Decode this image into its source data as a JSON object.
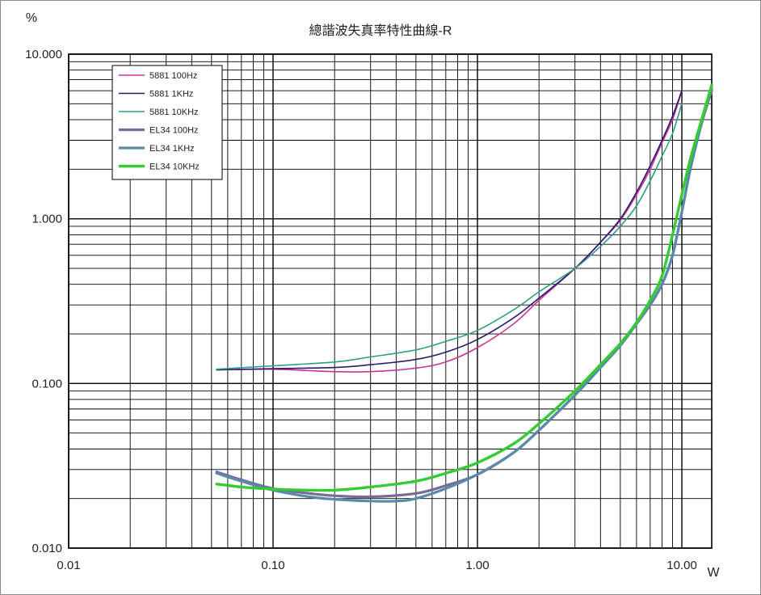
{
  "chart_data": {
    "type": "line",
    "title": "總諧波失真率特性曲線-R",
    "ylabel": "%",
    "xlabel": "W",
    "x_scale": "log",
    "y_scale": "log",
    "xlim": [
      0.01,
      14.0
    ],
    "ylim": [
      0.01,
      10.0
    ],
    "x_ticks": [
      {
        "value": 0.01,
        "label": "0.01"
      },
      {
        "value": 0.1,
        "label": "0.10"
      },
      {
        "value": 1,
        "label": "1.00"
      },
      {
        "value": 10,
        "label": "10.00"
      }
    ],
    "y_ticks": [
      {
        "value": 0.01,
        "label": "0.010"
      },
      {
        "value": 0.1,
        "label": "0.100"
      },
      {
        "value": 1,
        "label": "1.000"
      },
      {
        "value": 10,
        "label": "10.000"
      }
    ],
    "grid": true,
    "legend_position": "top-left",
    "series": [
      {
        "name": "5881 100Hz",
        "color": "#cc3399",
        "points": [
          [
            0.053,
            0.121
          ],
          [
            0.1,
            0.122
          ],
          [
            0.2,
            0.118
          ],
          [
            0.3,
            0.118
          ],
          [
            0.5,
            0.124
          ],
          [
            0.7,
            0.135
          ],
          [
            1.0,
            0.165
          ],
          [
            1.5,
            0.23
          ],
          [
            2.0,
            0.32
          ],
          [
            3.0,
            0.5
          ],
          [
            4.0,
            0.72
          ],
          [
            5.0,
            0.98
          ],
          [
            6.0,
            1.4
          ],
          [
            7.0,
            2.0
          ],
          [
            8.0,
            2.9
          ],
          [
            9.0,
            4.0
          ],
          [
            10.0,
            6.0
          ]
        ]
      },
      {
        "name": "5881 1KHz",
        "color": "#2a1a6a",
        "points": [
          [
            0.053,
            0.121
          ],
          [
            0.1,
            0.123
          ],
          [
            0.2,
            0.125
          ],
          [
            0.3,
            0.13
          ],
          [
            0.5,
            0.14
          ],
          [
            0.7,
            0.155
          ],
          [
            1.0,
            0.185
          ],
          [
            1.5,
            0.25
          ],
          [
            2.0,
            0.33
          ],
          [
            3.0,
            0.5
          ],
          [
            4.0,
            0.72
          ],
          [
            5.0,
            1.0
          ],
          [
            6.0,
            1.45
          ],
          [
            7.0,
            2.1
          ],
          [
            8.0,
            3.0
          ],
          [
            9.0,
            4.2
          ],
          [
            10.0,
            6.0
          ]
        ]
      },
      {
        "name": "5881 10KHz",
        "color": "#2e9e86",
        "points": [
          [
            0.053,
            0.122
          ],
          [
            0.1,
            0.128
          ],
          [
            0.2,
            0.135
          ],
          [
            0.3,
            0.145
          ],
          [
            0.5,
            0.16
          ],
          [
            0.7,
            0.18
          ],
          [
            1.0,
            0.21
          ],
          [
            1.5,
            0.28
          ],
          [
            2.0,
            0.36
          ],
          [
            3.0,
            0.5
          ],
          [
            4.0,
            0.68
          ],
          [
            5.0,
            0.9
          ],
          [
            6.0,
            1.2
          ],
          [
            7.0,
            1.7
          ],
          [
            8.0,
            2.4
          ],
          [
            9.0,
            3.3
          ],
          [
            10.0,
            5.0
          ]
        ]
      },
      {
        "name": "EL34 100Hz",
        "color": "#7a6a9a",
        "points": [
          [
            0.053,
            0.029
          ],
          [
            0.07,
            0.026
          ],
          [
            0.1,
            0.023
          ],
          [
            0.15,
            0.0215
          ],
          [
            0.2,
            0.0208
          ],
          [
            0.3,
            0.0205
          ],
          [
            0.5,
            0.0215
          ],
          [
            0.7,
            0.024
          ],
          [
            1.0,
            0.028
          ],
          [
            1.5,
            0.038
          ],
          [
            2.0,
            0.052
          ],
          [
            3.0,
            0.085
          ],
          [
            4.0,
            0.125
          ],
          [
            5.0,
            0.17
          ],
          [
            6.0,
            0.23
          ],
          [
            7.0,
            0.3
          ],
          [
            8.0,
            0.4
          ],
          [
            9.0,
            0.6
          ],
          [
            10.0,
            1.1
          ],
          [
            11.0,
            2.0
          ],
          [
            12.5,
            3.8
          ],
          [
            14.0,
            6.0
          ]
        ]
      },
      {
        "name": "EL34 1KHz",
        "color": "#5a8aaa",
        "points": [
          [
            0.053,
            0.0285
          ],
          [
            0.07,
            0.0255
          ],
          [
            0.1,
            0.0225
          ],
          [
            0.15,
            0.0205
          ],
          [
            0.2,
            0.0198
          ],
          [
            0.3,
            0.0193
          ],
          [
            0.4,
            0.0193
          ],
          [
            0.5,
            0.02
          ],
          [
            0.7,
            0.023
          ],
          [
            1.0,
            0.028
          ],
          [
            1.5,
            0.038
          ],
          [
            2.0,
            0.052
          ],
          [
            3.0,
            0.085
          ],
          [
            4.0,
            0.125
          ],
          [
            5.0,
            0.17
          ],
          [
            6.0,
            0.23
          ],
          [
            7.0,
            0.3
          ],
          [
            8.0,
            0.4
          ],
          [
            9.0,
            0.6
          ],
          [
            10.0,
            1.1
          ],
          [
            11.0,
            2.0
          ],
          [
            12.5,
            3.8
          ],
          [
            14.0,
            6.2
          ]
        ]
      },
      {
        "name": "EL34 10KHz",
        "color": "#33cc33",
        "points": [
          [
            0.053,
            0.0245
          ],
          [
            0.07,
            0.0235
          ],
          [
            0.1,
            0.0228
          ],
          [
            0.15,
            0.0225
          ],
          [
            0.2,
            0.0225
          ],
          [
            0.3,
            0.0235
          ],
          [
            0.5,
            0.0255
          ],
          [
            0.7,
            0.0285
          ],
          [
            1.0,
            0.033
          ],
          [
            1.5,
            0.043
          ],
          [
            2.0,
            0.057
          ],
          [
            3.0,
            0.09
          ],
          [
            4.0,
            0.13
          ],
          [
            5.0,
            0.175
          ],
          [
            6.0,
            0.235
          ],
          [
            7.0,
            0.32
          ],
          [
            8.0,
            0.45
          ],
          [
            9.0,
            0.8
          ],
          [
            10.0,
            1.4
          ],
          [
            11.0,
            2.3
          ],
          [
            12.5,
            4.0
          ],
          [
            14.0,
            6.5
          ]
        ]
      }
    ]
  }
}
